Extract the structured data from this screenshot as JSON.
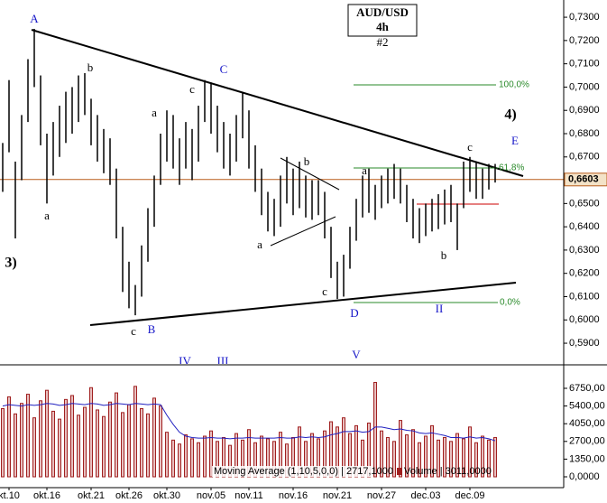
{
  "chart_data": {
    "type": "ohlc",
    "title": "AUD/USD",
    "subtitle": "4h",
    "note": "#2",
    "categories": [
      null,
      "kt.10",
      null,
      null,
      null,
      null,
      null,
      "okt.16",
      null,
      null,
      null,
      null,
      null,
      null,
      "okt.21",
      null,
      null,
      null,
      null,
      null,
      "okt.26",
      null,
      null,
      null,
      null,
      null,
      "okt.30",
      null,
      null,
      null,
      null,
      null,
      null,
      "nov.05",
      null,
      null,
      null,
      null,
      null,
      "nov.11",
      null,
      null,
      null,
      null,
      null,
      null,
      "nov.16",
      null,
      null,
      null,
      null,
      null,
      null,
      "nov.21",
      null,
      null,
      null,
      null,
      null,
      null,
      "nov.27",
      null,
      null,
      null,
      null,
      null,
      null,
      "dec.03",
      null,
      null,
      null,
      null,
      null,
      null,
      "dec.09",
      null,
      null,
      null,
      null
    ],
    "high": [
      0.676,
      0.703,
      0.668,
      0.688,
      0.712,
      0.725,
      0.705,
      0.68,
      0.685,
      0.692,
      0.698,
      0.7,
      0.705,
      0.706,
      0.695,
      0.688,
      0.682,
      0.678,
      0.665,
      0.64,
      0.625,
      0.615,
      0.632,
      0.648,
      0.662,
      0.68,
      0.69,
      0.688,
      0.678,
      0.685,
      0.682,
      0.692,
      0.703,
      0.702,
      0.692,
      0.685,
      0.68,
      0.688,
      0.698,
      0.69,
      0.675,
      0.665,
      0.655,
      0.652,
      0.662,
      0.67,
      0.665,
      0.668,
      0.662,
      0.66,
      0.66,
      0.655,
      0.64,
      0.625,
      0.628,
      0.64,
      0.652,
      0.662,
      0.665,
      0.658,
      0.662,
      0.665,
      0.667,
      0.665,
      0.658,
      0.652,
      0.648,
      0.65,
      0.652,
      0.654,
      0.656,
      0.658,
      0.65,
      0.668,
      0.67,
      0.668,
      0.665,
      0.667,
      0.667
    ],
    "low": [
      0.655,
      0.672,
      0.635,
      0.66,
      0.685,
      0.7,
      0.675,
      0.65,
      0.662,
      0.67,
      0.676,
      0.68,
      0.685,
      0.688,
      0.675,
      0.668,
      0.663,
      0.658,
      0.635,
      0.612,
      0.605,
      0.602,
      0.61,
      0.625,
      0.64,
      0.658,
      0.668,
      0.665,
      0.658,
      0.665,
      0.66,
      0.668,
      0.685,
      0.68,
      0.672,
      0.665,
      0.662,
      0.668,
      0.678,
      0.665,
      0.655,
      0.645,
      0.638,
      0.636,
      0.64,
      0.65,
      0.645,
      0.648,
      0.644,
      0.643,
      0.645,
      0.635,
      0.618,
      0.609,
      0.61,
      0.622,
      0.634,
      0.644,
      0.646,
      0.643,
      0.648,
      0.65,
      0.652,
      0.65,
      0.642,
      0.635,
      0.633,
      0.636,
      0.638,
      0.639,
      0.641,
      0.642,
      0.63,
      0.648,
      0.655,
      0.652,
      0.652,
      0.656,
      0.659
    ],
    "color": "#000000",
    "ylim": [
      0.5811,
      0.7374
    ],
    "yticks": [
      {
        "value": 0.59,
        "label": "0,5900"
      },
      {
        "value": 0.6,
        "label": "0,6000"
      },
      {
        "value": 0.61,
        "label": "0,6100"
      },
      {
        "value": 0.62,
        "label": "0,6200"
      },
      {
        "value": 0.63,
        "label": "0,6300"
      },
      {
        "value": 0.64,
        "label": "0,6400"
      },
      {
        "value": 0.65,
        "label": "0,6500"
      },
      {
        "value": 0.66,
        "label": "0,6600"
      },
      {
        "value": 0.67,
        "label": "0,6700"
      },
      {
        "value": 0.68,
        "label": "0,6800"
      },
      {
        "value": 0.69,
        "label": "0,6900"
      },
      {
        "value": 0.7,
        "label": "0,7000"
      },
      {
        "value": 0.71,
        "label": "0,7100"
      },
      {
        "value": 0.72,
        "label": "0,7200"
      },
      {
        "value": 0.73,
        "label": "0,7300"
      }
    ],
    "last_price": {
      "value": 0.6603,
      "label": "0,6603"
    },
    "annotations": [
      "A",
      "b",
      "a",
      "c",
      "C",
      "a",
      "3)",
      "c",
      "B",
      "b",
      "a",
      "c",
      "D",
      "a",
      "b",
      "c",
      "4)",
      "E",
      "II",
      "IV",
      "III",
      "V",
      "100,0%",
      "61,8%",
      "0,0%"
    ],
    "volume": {
      "values": [
        5200,
        6100,
        4800,
        5600,
        6300,
        4500,
        5800,
        6600,
        5000,
        4400,
        5900,
        6200,
        4700,
        5300,
        6800,
        5100,
        4600,
        5700,
        6400,
        4900,
        5500,
        6900,
        5200,
        4800,
        6000,
        5400,
        3400,
        2800,
        2500,
        3200,
        2900,
        2600,
        3100,
        3500,
        2700,
        3000,
        2400,
        3300,
        2800,
        3600,
        2600,
        3100,
        2900,
        2700,
        3400,
        2500,
        3000,
        3800,
        2700,
        3300,
        2900,
        3500,
        4200,
        3800,
        4500,
        3300,
        3900,
        2800,
        4100,
        7200,
        3500,
        3000,
        2700,
        4300,
        3200,
        3600,
        2600,
        3100,
        3900,
        2800,
        3000,
        2700,
        3300,
        2900,
        3800,
        2600,
        3100,
        2800,
        3000
      ],
      "ma": [
        5400,
        5500,
        5450,
        5400,
        5500,
        5450,
        5500,
        5600,
        5550,
        5450,
        5500,
        5600,
        5550,
        5500,
        5600,
        5550,
        5450,
        5500,
        5600,
        5550,
        5500,
        5600,
        5550,
        5500,
        5550,
        5500,
        4700,
        4000,
        3400,
        3100,
        3000,
        2950,
        2950,
        3000,
        2950,
        2950,
        2900,
        2950,
        2950,
        3000,
        2950,
        2950,
        2950,
        2950,
        3000,
        2950,
        2950,
        3050,
        3000,
        3050,
        3000,
        3050,
        3200,
        3300,
        3450,
        3450,
        3500,
        3400,
        3450,
        3800,
        3800,
        3700,
        3600,
        3650,
        3550,
        3500,
        3350,
        3300,
        3350,
        3250,
        3150,
        3000,
        3000,
        2950,
        3050,
        2950,
        3000,
        2900,
        2750
      ],
      "color": "#a02020",
      "ma_color": "#2020c0",
      "ylim": [
        -826,
        8472
      ],
      "yticks": [
        {
          "value": 0,
          "label": "0,0000"
        },
        {
          "value": 1350,
          "label": "1350,00"
        },
        {
          "value": 2700,
          "label": "2700,00"
        },
        {
          "value": 4050,
          "label": "4050,00"
        },
        {
          "value": 5400,
          "label": "5400,00"
        },
        {
          "value": 6750,
          "label": "6750,00"
        }
      ],
      "legend_ma": "Moving Average (1,10,5,0,0) | 2717,1000",
      "legend_vol": "Volume | 3011,0000"
    }
  }
}
